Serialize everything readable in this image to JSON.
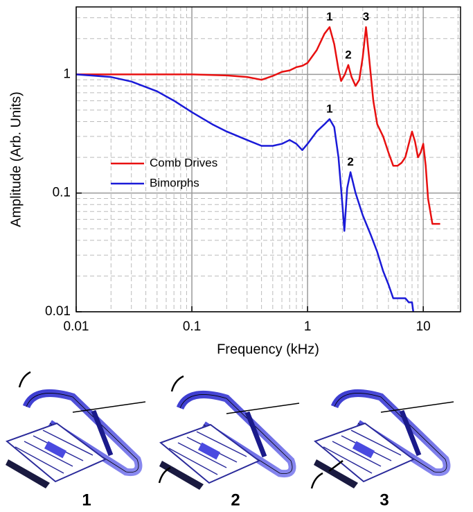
{
  "chart_data": {
    "type": "line",
    "x_label": "Frequency (kHz)",
    "y_label": "Amplitude (Arb. Units)",
    "xlog": true,
    "ylog": true,
    "xlim": [
      0.01,
      21
    ],
    "ylim": [
      0.01,
      3.7
    ],
    "xticks": [
      0.01,
      0.1,
      1,
      10
    ],
    "yticks": [
      0.01,
      0.1,
      1
    ],
    "grid": true,
    "minor_grid": true,
    "legend": "left",
    "series": [
      {
        "name": "Comb Drives",
        "color": "#e81010",
        "x": [
          0.01,
          0.02,
          0.05,
          0.1,
          0.2,
          0.3,
          0.4,
          0.5,
          0.6,
          0.7,
          0.8,
          0.9,
          1.0,
          1.2,
          1.4,
          1.55,
          1.7,
          1.85,
          1.95,
          2.1,
          2.25,
          2.4,
          2.6,
          2.8,
          3.0,
          3.2,
          3.4,
          3.7,
          4.0,
          4.5,
          5.0,
          5.5,
          6.0,
          6.5,
          7.0,
          7.5,
          8.0,
          8.5,
          9.0,
          9.5,
          10.0,
          10.5,
          11,
          12,
          14
        ],
        "values": [
          1.0,
          1.0,
          1.0,
          1.0,
          0.98,
          0.95,
          0.9,
          0.97,
          1.05,
          1.08,
          1.15,
          1.18,
          1.25,
          1.6,
          2.2,
          2.5,
          1.8,
          1.1,
          0.88,
          1.0,
          1.2,
          0.95,
          0.8,
          0.9,
          1.4,
          2.5,
          1.4,
          0.6,
          0.38,
          0.3,
          0.22,
          0.17,
          0.17,
          0.18,
          0.2,
          0.26,
          0.33,
          0.27,
          0.2,
          0.22,
          0.26,
          0.17,
          0.09,
          0.055,
          0.055
        ]
      },
      {
        "name": "Bimorphs",
        "color": "#1a1ad8",
        "x": [
          0.01,
          0.02,
          0.03,
          0.05,
          0.07,
          0.1,
          0.15,
          0.2,
          0.3,
          0.4,
          0.5,
          0.6,
          0.7,
          0.8,
          0.9,
          1.0,
          1.2,
          1.4,
          1.55,
          1.7,
          1.85,
          2.0,
          2.08,
          2.2,
          2.35,
          2.6,
          3.0,
          3.5,
          4.0,
          4.5,
          5.0,
          5.5,
          6.0,
          7.0,
          7.5,
          8.0,
          8.2
        ],
        "values": [
          1.0,
          0.95,
          0.87,
          0.72,
          0.6,
          0.48,
          0.38,
          0.33,
          0.28,
          0.25,
          0.25,
          0.26,
          0.28,
          0.26,
          0.23,
          0.26,
          0.33,
          0.38,
          0.42,
          0.36,
          0.2,
          0.08,
          0.048,
          0.11,
          0.15,
          0.1,
          0.065,
          0.045,
          0.032,
          0.022,
          0.017,
          0.013,
          0.013,
          0.013,
          0.012,
          0.012,
          0.01
        ]
      }
    ],
    "annotations": [
      {
        "text": "1",
        "x": 1.55,
        "y": 2.5
      },
      {
        "text": "2",
        "x": 2.25,
        "y": 1.2
      },
      {
        "text": "3",
        "x": 3.2,
        "y": 2.5
      },
      {
        "text": "1",
        "x": 1.55,
        "y": 0.42
      },
      {
        "text": "2",
        "x": 2.35,
        "y": 0.15
      }
    ]
  },
  "figure": {
    "panel_labels": [
      "1",
      "2",
      "3"
    ]
  }
}
